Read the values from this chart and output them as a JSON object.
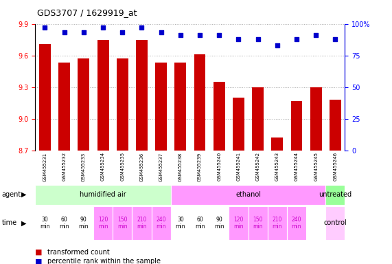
{
  "title": "GDS3707 / 1629919_at",
  "samples": [
    "GSM455231",
    "GSM455232",
    "GSM455233",
    "GSM455234",
    "GSM455235",
    "GSM455236",
    "GSM455237",
    "GSM455238",
    "GSM455239",
    "GSM455240",
    "GSM455241",
    "GSM455242",
    "GSM455243",
    "GSM455244",
    "GSM455245",
    "GSM455246"
  ],
  "bar_values": [
    9.71,
    9.53,
    9.57,
    9.75,
    9.57,
    9.75,
    9.53,
    9.53,
    9.61,
    9.35,
    9.2,
    9.3,
    8.82,
    9.17,
    9.3,
    9.18
  ],
  "percentile_values": [
    97,
    93,
    93,
    97,
    93,
    97,
    93,
    91,
    91,
    91,
    88,
    88,
    83,
    88,
    91,
    88
  ],
  "ylim_left": [
    8.7,
    9.9
  ],
  "ylim_right": [
    0,
    100
  ],
  "yticks_left": [
    8.7,
    9.0,
    9.3,
    9.6,
    9.9
  ],
  "yticks_right": [
    0,
    25,
    50,
    75,
    100
  ],
  "ytick_labels_right": [
    "0",
    "25",
    "50",
    "75",
    "100%"
  ],
  "bar_color": "#cc0000",
  "dot_color": "#0000cc",
  "bar_bottom": 8.7,
  "agent_groups": [
    {
      "label": "humidified air",
      "start": 0,
      "end": 7,
      "color": "#ccffcc"
    },
    {
      "label": "ethanol",
      "start": 7,
      "end": 15,
      "color": "#ff99ff"
    },
    {
      "label": "untreated",
      "start": 15,
      "end": 16,
      "color": "#99ff99"
    }
  ],
  "time_labels": [
    "30\nmin",
    "60\nmin",
    "90\nmin",
    "120\nmin",
    "150\nmin",
    "210\nmin",
    "240\nmin",
    "30\nmin",
    "60\nmin",
    "90\nmin",
    "120\nmin",
    "150\nmin",
    "210\nmin",
    "240\nmin"
  ],
  "time_colors": [
    "#ffffff",
    "#ffffff",
    "#ffffff",
    "#ff99ff",
    "#ff99ff",
    "#ff99ff",
    "#ff99ff",
    "#ffffff",
    "#ffffff",
    "#ffffff",
    "#ff99ff",
    "#ff99ff",
    "#ff99ff",
    "#ff99ff"
  ],
  "time_text_colors": [
    "#000000",
    "#000000",
    "#000000",
    "#cc00cc",
    "#cc00cc",
    "#cc00cc",
    "#cc00cc",
    "#000000",
    "#000000",
    "#000000",
    "#cc00cc",
    "#cc00cc",
    "#cc00cc",
    "#cc00cc"
  ],
  "control_color": "#ffccff",
  "legend_bar_color": "#cc0000",
  "legend_dot_color": "#0000cc",
  "grid_color": "#aaaaaa",
  "tick_area_bg": "#dddddd"
}
